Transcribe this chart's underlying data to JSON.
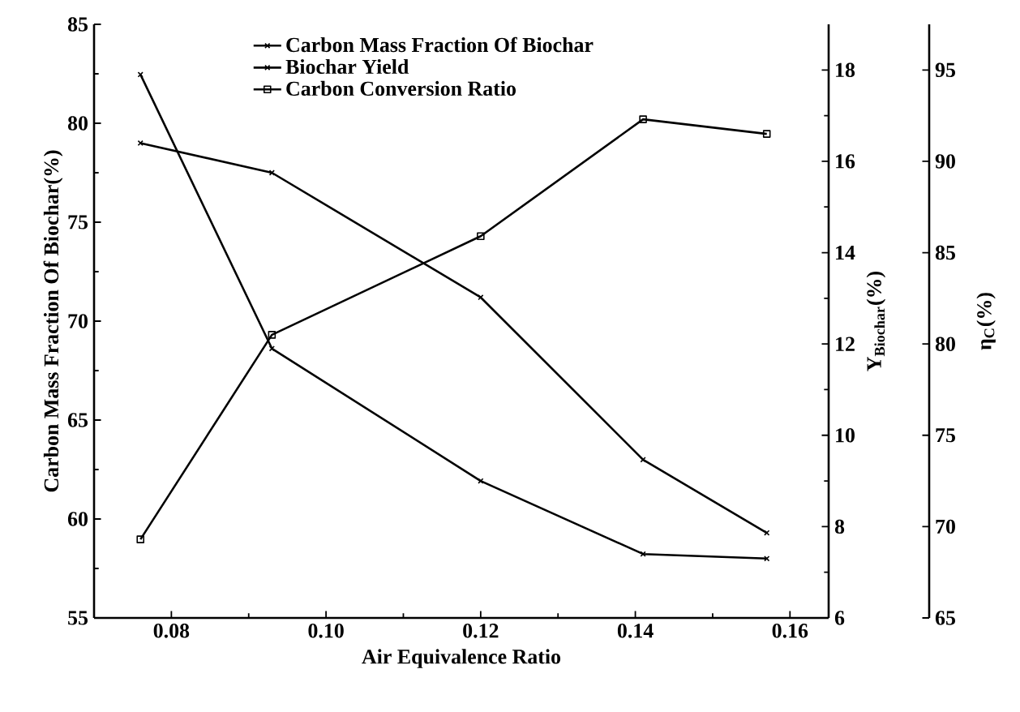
{
  "chart_data": {
    "type": "line",
    "xlabel": "Air Equivalence Ratio",
    "ylabel": "Carbon Mass Fraction Of Biochar(%)",
    "y2label": "Y$_{Biochar}$(%)",
    "y3label": "η$_{C}$(%)",
    "x": [
      0.076,
      0.093,
      0.12,
      0.141,
      0.157
    ],
    "xlim": [
      0.07,
      0.165
    ],
    "xticks": [
      0.08,
      {
        "value": 0.1,
        "label": "0.10"
      },
      0.12,
      0.14,
      0.16
    ],
    "ylim": [
      55,
      85
    ],
    "yticks": [
      55,
      60,
      65,
      70,
      75,
      80,
      85
    ],
    "y2lim": [
      6,
      19
    ],
    "y2ticks": [
      6,
      8,
      10,
      12,
      14,
      16,
      18
    ],
    "y3lim": [
      65,
      97.5
    ],
    "y3ticks": [
      65,
      70,
      75,
      80,
      85,
      90,
      95
    ],
    "legend": "top",
    "grid": false,
    "line_style": "solid",
    "series": [
      {
        "name": "Carbon Mass Fraction Of Biochar",
        "color": "#000000",
        "marker": "cross",
        "values": [
          79.0,
          77.5,
          71.2,
          63.0,
          59.3
        ]
      },
      {
        "name": "Biochar Yield",
        "color": "#000000",
        "marker": "cross",
        "axis": "y2",
        "values": [
          17.9,
          11.9,
          9.0,
          7.4,
          7.3
        ]
      },
      {
        "name": "Carbon Conversion Ratio",
        "color": "#000000",
        "marker": "square",
        "axis": "y3",
        "values": [
          69.3,
          80.5,
          85.9,
          92.3,
          91.5
        ]
      }
    ]
  }
}
